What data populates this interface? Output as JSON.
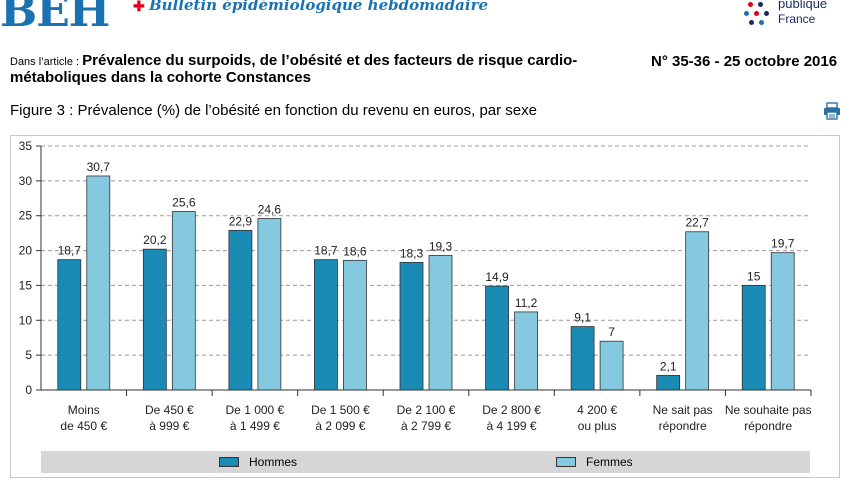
{
  "header": {
    "logo": "BEH",
    "bulletin": "Bulletin épidémiologique hebdomadaire",
    "publisher_line1": "publique",
    "publisher_line2": "France"
  },
  "article": {
    "prefix": "Dans l’article : ",
    "title": "Prévalence du surpoids, de l’obésité et des facteurs de risque cardio-métaboliques dans la cohorte Constances",
    "issue": "N° 35-36 - 25 octobre 2016"
  },
  "figure": {
    "title": "Figure 3 : Prévalence (%) de l’obésité en fonction du revenu en euros, par sexe",
    "print_icon": "printer-icon"
  },
  "colors": {
    "hommes": "#1a8bb5",
    "femmes": "#84c9df",
    "grid": "#9a9a9a",
    "axis": "#333333"
  },
  "chart_data": {
    "type": "bar",
    "title": "Prévalence (%) de l’obésité en fonction du revenu en euros, par sexe",
    "xlabel": "",
    "ylabel": "",
    "ylim": [
      0,
      35
    ],
    "yticks": [
      0,
      5,
      10,
      15,
      20,
      25,
      30,
      35
    ],
    "grid": true,
    "legend_position": "bottom",
    "categories": [
      [
        "Moins",
        "de 450 €"
      ],
      [
        "De 450 €",
        "à 999 €"
      ],
      [
        "De 1 000 €",
        "à 1 499 €"
      ],
      [
        "De 1 500 €",
        "à 2 099 €"
      ],
      [
        "De 2 100 €",
        "à 2 799 €"
      ],
      [
        "De 2 800 €",
        "à 4 199 €"
      ],
      [
        "4 200 €",
        "ou plus"
      ],
      [
        "Ne sait pas",
        "répondre"
      ],
      [
        "Ne souhaite pas",
        "répondre"
      ]
    ],
    "series": [
      {
        "name": "Hommes",
        "values": [
          18.7,
          20.2,
          22.9,
          18.7,
          18.3,
          14.9,
          9.1,
          2.1,
          15
        ],
        "labels": [
          "18,7",
          "20,2",
          "22,9",
          "18,7",
          "18,3",
          "14,9",
          "9,1",
          "2,1",
          "15"
        ]
      },
      {
        "name": "Femmes",
        "values": [
          30.7,
          25.6,
          24.6,
          18.6,
          19.3,
          11.2,
          7,
          22.7,
          19.7
        ],
        "labels": [
          "30,7",
          "25,6",
          "24,6",
          "18,6",
          "19,3",
          "11,2",
          "7",
          "22,7",
          "19,7"
        ]
      }
    ]
  }
}
